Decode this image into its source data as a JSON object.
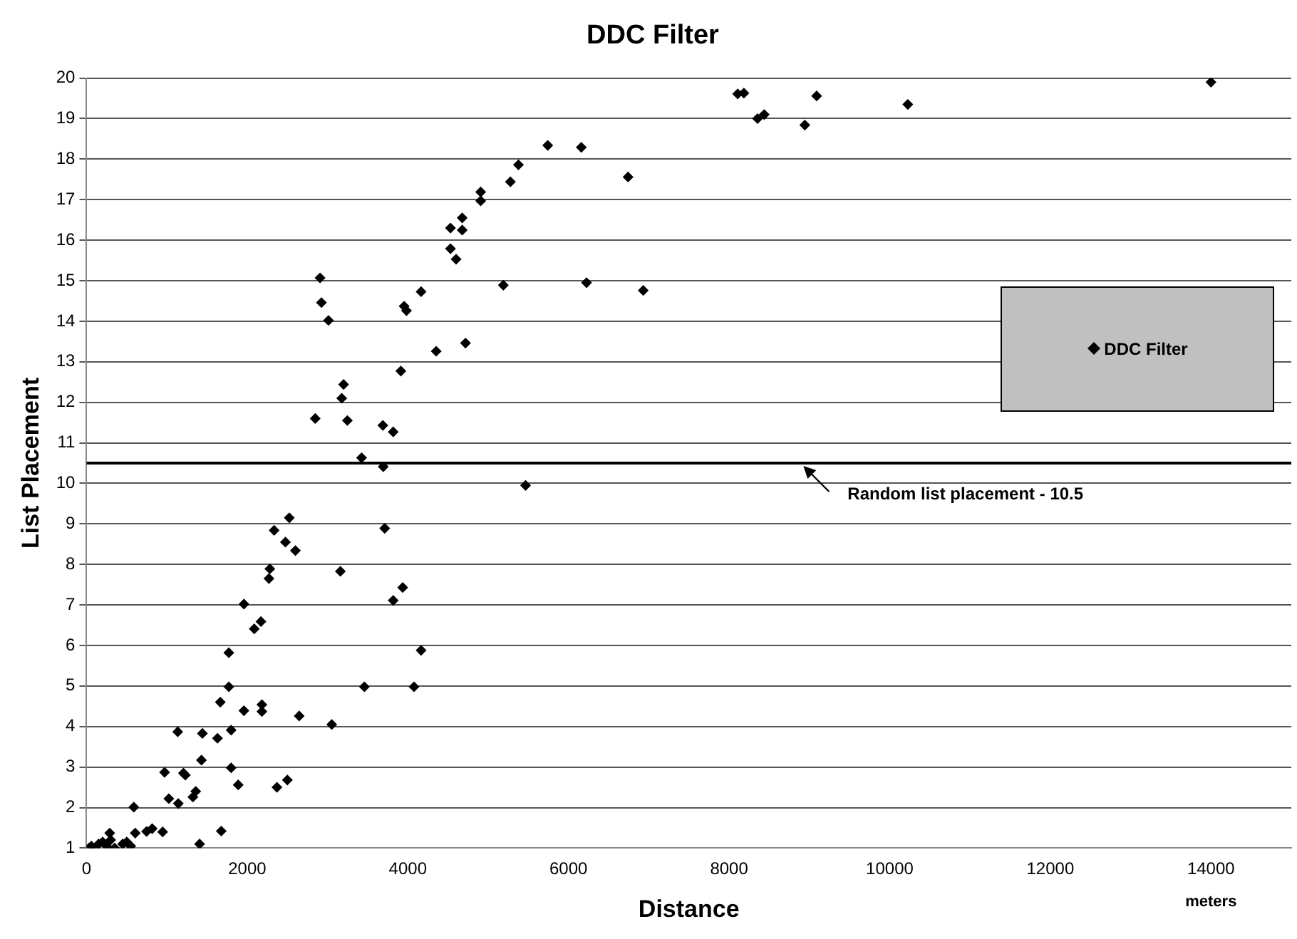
{
  "chart_data": {
    "type": "scatter",
    "title": "DDC Filter",
    "xlabel": "Distance",
    "ylabel": "List Placement",
    "annotations": [
      "meters"
    ],
    "xlim": [
      0,
      15000
    ],
    "xticks": [
      0,
      2000,
      4000,
      6000,
      8000,
      10000,
      12000,
      14000
    ],
    "ylim": [
      1,
      20
    ],
    "yticks": [
      1,
      2,
      3,
      4,
      5,
      6,
      7,
      8,
      9,
      10,
      11,
      12,
      13,
      14,
      15,
      16,
      17,
      18,
      19,
      20
    ],
    "grid": "y",
    "legend": "right",
    "marker": "diamond",
    "ref_lines": [
      {
        "axis": "y",
        "value": 10.5,
        "label": "Random list placement - 10.5",
        "color": "#000000"
      }
    ],
    "series": [
      {
        "name": "DDC Filter",
        "color": "#000000",
        "x": [
          30,
          60,
          100,
          150,
          200,
          250,
          300,
          350,
          450,
          500,
          550,
          288,
          606,
          747,
          817,
          947,
          588,
          1024,
          1142,
          1324,
          1359,
          1407,
          1677,
          971,
          1206,
          1230,
          1800,
          1888,
          2370,
          2500,
          1430,
          1135,
          1442,
          1630,
          1800,
          1665,
          1959,
          2183,
          2183,
          2647,
          3053,
          1771,
          3459,
          4077,
          1771,
          1959,
          2088,
          2171,
          2282,
          2271,
          3160,
          3936,
          3818,
          4165,
          2524,
          2335,
          2476,
          2600,
          3712,
          5466,
          3424,
          3694,
          2847,
          3247,
          3689,
          3818,
          3200,
          3177,
          3913,
          4353,
          4718,
          2907,
          2924,
          3012,
          3954,
          3983,
          4165,
          5189,
          6225,
          6931,
          4531,
          4601,
          4531,
          4677,
          4677,
          4907,
          4907,
          5277,
          5377,
          6742,
          5742,
          6160,
          8107,
          8184,
          8354,
          8437,
          8943,
          9090,
          10225,
          14000
        ],
        "values": [
          1.0,
          1.05,
          1.0,
          1.1,
          1.15,
          1.05,
          1.2,
          1.0,
          1.1,
          1.15,
          1.05,
          1.37,
          1.37,
          1.41,
          1.48,
          1.4,
          2.01,
          2.22,
          2.1,
          2.26,
          2.4,
          1.1,
          1.42,
          2.87,
          2.85,
          2.8,
          2.98,
          2.56,
          2.5,
          2.68,
          3.17,
          3.87,
          3.83,
          3.71,
          3.91,
          4.6,
          4.39,
          4.54,
          4.37,
          4.26,
          4.05,
          4.98,
          4.98,
          4.98,
          5.82,
          7.02,
          6.41,
          6.59,
          7.89,
          7.65,
          7.83,
          7.43,
          7.11,
          5.88,
          9.15,
          8.84,
          8.55,
          8.34,
          8.89,
          9.95,
          10.63,
          10.41,
          11.6,
          11.55,
          11.43,
          11.27,
          12.44,
          12.1,
          12.77,
          13.26,
          13.46,
          15.07,
          14.46,
          14.02,
          14.37,
          14.26,
          14.73,
          14.89,
          14.95,
          14.76,
          16.3,
          15.53,
          15.79,
          16.55,
          16.25,
          17.19,
          16.97,
          17.44,
          17.86,
          17.56,
          18.34,
          18.29,
          19.61,
          19.63,
          19.0,
          19.1,
          18.84,
          19.56,
          19.35,
          19.9
        ]
      }
    ]
  }
}
